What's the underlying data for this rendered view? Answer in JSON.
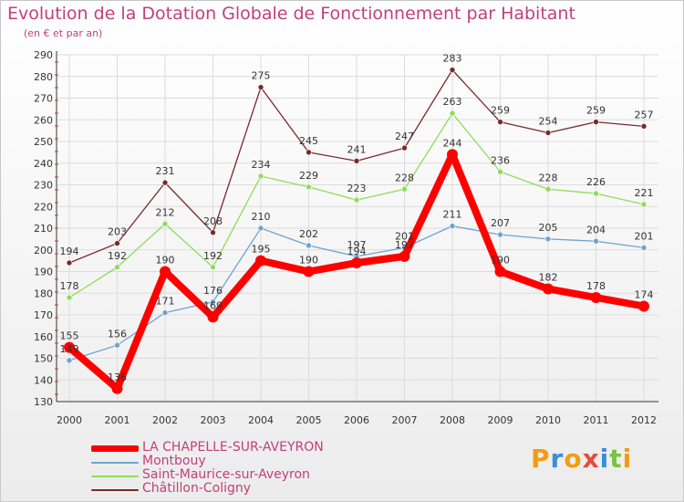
{
  "header": {
    "title": "Evolution de la Dotation Globale de Fonctionnement par Habitant",
    "subtitle": "(en € et par an)"
  },
  "logo": {
    "letters": [
      "P",
      "r",
      "o",
      "x",
      "i",
      "t",
      "i"
    ],
    "colors": [
      "#f39c12",
      "#3a8fd8",
      "#f39c12",
      "#e74c3c",
      "#3a8fd8",
      "#7cc242",
      "#f39c12"
    ]
  },
  "chart_data": {
    "type": "line",
    "title": "Evolution de la Dotation Globale de Fonctionnement par Habitant",
    "subtitle": "(en € et par an)",
    "x": [
      "2000",
      "2001",
      "2002",
      "2003",
      "2004",
      "2005",
      "2006",
      "2007",
      "2008",
      "2009",
      "2010",
      "2011",
      "2012"
    ],
    "yticks": [
      130,
      140,
      150,
      160,
      170,
      180,
      190,
      200,
      210,
      220,
      230,
      240,
      250,
      260,
      270,
      280,
      290
    ],
    "ylim": [
      130,
      290
    ],
    "grid": true,
    "legend_position": "bottom-left",
    "series": [
      {
        "name": "Châtillon-Coligny",
        "color": "#7a2a2a",
        "values": [
          194,
          203,
          231,
          208,
          275,
          245,
          241,
          247,
          283,
          259,
          254,
          259,
          257
        ],
        "labels": [
          "194",
          "203",
          "231",
          "208",
          "275",
          "245",
          "241",
          "247",
          "283",
          "259",
          "254",
          "259",
          "257"
        ]
      },
      {
        "name": "Saint-Maurice-sur-Aveyron",
        "color": "#8fdc5a",
        "values": [
          178,
          192,
          212,
          192,
          234,
          229,
          223,
          228,
          263,
          236,
          228,
          226,
          221
        ],
        "labels": [
          "178",
          "192",
          "212",
          "192",
          "234",
          "229",
          "223",
          "228",
          "263",
          "236",
          "228",
          "226",
          "221"
        ]
      },
      {
        "name": "Montbouy",
        "color": "#6ea3d0",
        "values": [
          149,
          156,
          171,
          176,
          210,
          202,
          197,
          201,
          211,
          207,
          205,
          204,
          201
        ],
        "labels": [
          "149",
          "156",
          "171",
          "176",
          "210",
          "202",
          "197",
          "201",
          "211",
          "207",
          "205",
          "204",
          "201"
        ]
      },
      {
        "name": "LA CHAPELLE-SUR-AVEYRON",
        "color": "#ff0000",
        "values": [
          155,
          136,
          190,
          169,
          195,
          190,
          194,
          197,
          244,
          190,
          182,
          178,
          174
        ],
        "labels": [
          "155",
          "136",
          "190",
          "169",
          "195",
          "190",
          "194",
          "197",
          "244",
          "190",
          "182",
          "178",
          "174"
        ]
      }
    ],
    "legend": [
      {
        "name": "LA CHAPELLE-SUR-AVEYRON",
        "color": "#ff0000",
        "thick": true
      },
      {
        "name": "Montbouy",
        "color": "#6ea3d0",
        "thick": false
      },
      {
        "name": "Saint-Maurice-sur-Aveyron",
        "color": "#8fdc5a",
        "thick": false
      },
      {
        "name": "Châtillon-Coligny",
        "color": "#7a2a2a",
        "thick": false
      }
    ]
  }
}
